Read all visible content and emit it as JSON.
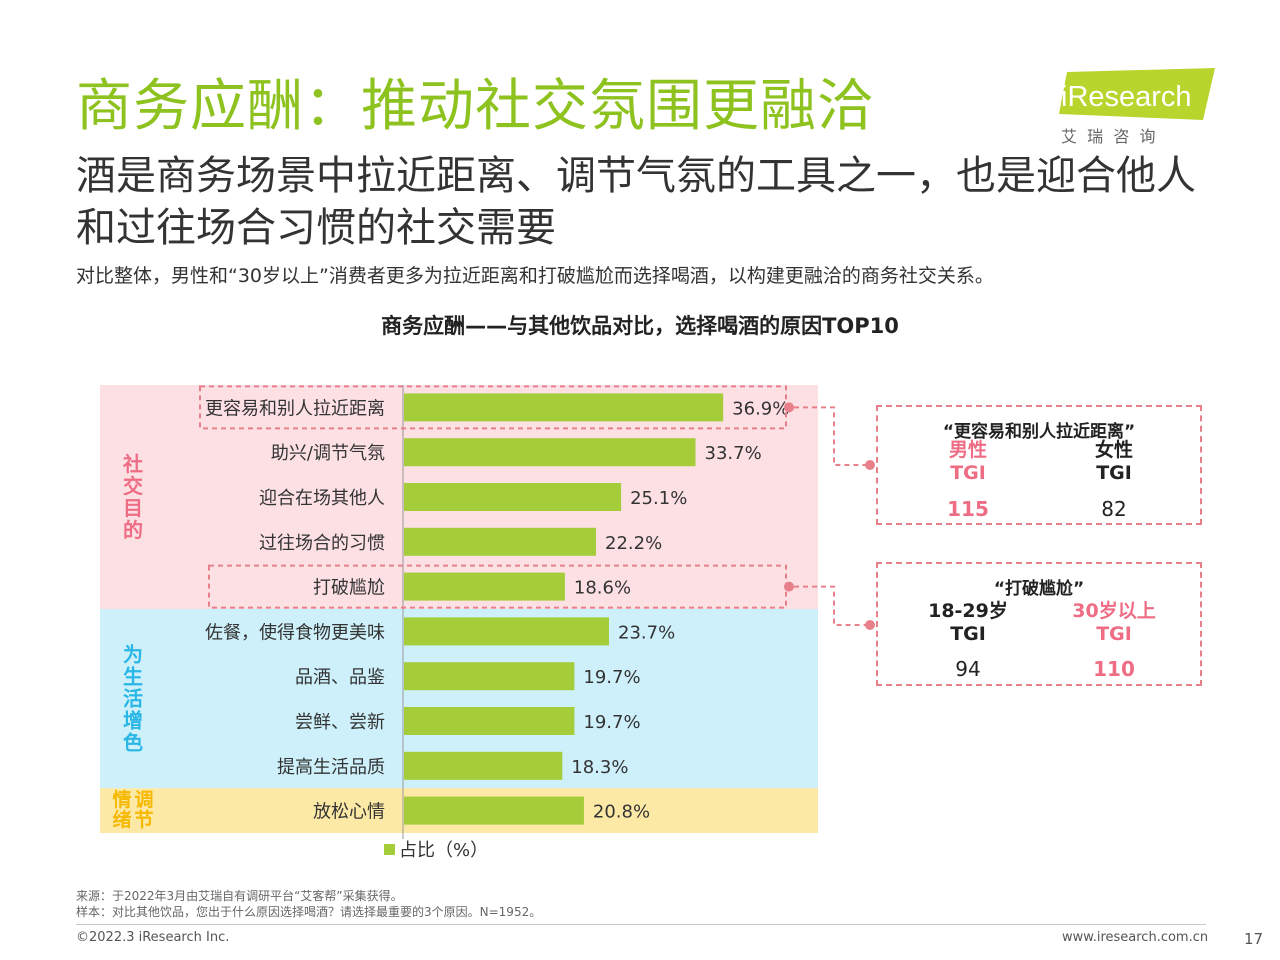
{
  "header": {
    "title": "商务应酬：推动社交氛围更融洽",
    "subtitle": "酒是商务场景中拉近距离、调节气氛的工具之一，也是迎合他人和过往场合习惯的社交需要",
    "description": "对比整体，男性和“30岁以上”消费者更多为拉近距离和打破尴尬而选择喝酒，以构建更融洽的商务社交关系。"
  },
  "logo": {
    "brand": "iResearch",
    "chinese": "艾  瑞  咨  询"
  },
  "chart_data": {
    "type": "bar",
    "orientation": "horizontal",
    "title": "商务应酬——与其他饮品对比，选择喝酒的原因TOP10",
    "categories": [
      "更容易和别人拉近距离",
      "助兴/调节气氛",
      "迎合在场其他人",
      "过往场合的习惯",
      "打破尴尬",
      "佐餐，使得食物更美味",
      "品酒、品鉴",
      "尝鲜、尝新",
      "提高生活品质",
      "放松心情"
    ],
    "series": [
      {
        "name": "占比（%）",
        "values": [
          36.9,
          33.7,
          25.1,
          22.2,
          18.6,
          23.7,
          19.7,
          19.7,
          18.3,
          20.8
        ]
      }
    ],
    "value_labels": [
      "36.9%",
      "33.7%",
      "25.1%",
      "22.2%",
      "18.6%",
      "23.7%",
      "19.7%",
      "19.7%",
      "18.3%",
      "20.8%"
    ],
    "groups": [
      {
        "label": "社交目的",
        "members": 5,
        "color": "#fce0e4",
        "label_color": "#ee6d84"
      },
      {
        "label": "为生活增色",
        "members": 4,
        "color": "#cdf0fa",
        "label_color": "#2bb7e6"
      },
      {
        "label": "调节情绪",
        "members": 1,
        "color": "#fde9a6",
        "label_color": "#f6b800"
      }
    ],
    "highlighted": [
      0,
      4
    ],
    "bar_color": "#a5cd39",
    "legend": "占比（%）",
    "xlim": [
      0,
      40
    ],
    "legend_position": "bottom-left"
  },
  "callouts": [
    {
      "title": "“更容易和别人拉近距离”",
      "left": {
        "label": "男性",
        "sub": "TGI",
        "value": "115",
        "highlight": true
      },
      "right": {
        "label": "女性",
        "sub": "TGI",
        "value": "82",
        "highlight": false
      }
    },
    {
      "title": "“打破尴尬”",
      "left": {
        "label": "18-29岁",
        "sub": "TGI",
        "value": "94",
        "highlight": false
      },
      "right": {
        "label": "30岁以上",
        "sub": "TGI",
        "value": "110",
        "highlight": true
      }
    }
  ],
  "footer": {
    "source": "来源：于2022年3月由艾瑞自有调研平台“艾客帮”采集获得。",
    "sample": "样本：对比其他饮品，您出于什么原因选择喝酒？请选择最重要的3个原因。N=1952。",
    "copyright": "©2022.3 iResearch Inc.",
    "website": "www.iresearch.com.cn",
    "page": "17"
  },
  "colors": {
    "title_green": "#8dc21f",
    "highlight_pink": "#ee6d84",
    "dash_pink": "#e8808c"
  }
}
